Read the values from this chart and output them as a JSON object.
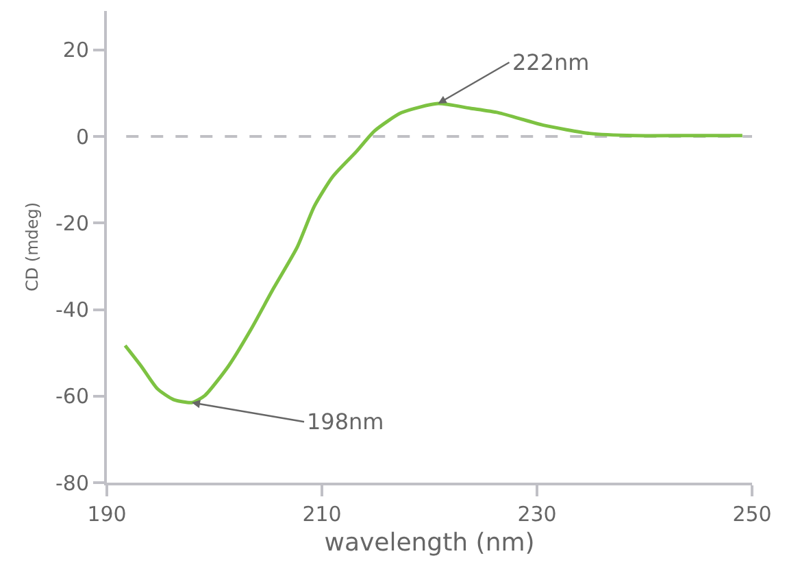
{
  "chart_data": {
    "type": "line",
    "xlabel": "wavelength (nm)",
    "ylabel": "CD (mdeg)",
    "xlim": [
      190,
      250
    ],
    "xticks": [
      190,
      210,
      230,
      250
    ],
    "ylim": [
      -80,
      29
    ],
    "yticks": [
      -80,
      -60,
      -40,
      -20,
      0,
      20
    ],
    "marker": "none",
    "line_style": "solid",
    "series": [
      {
        "color": "#7dc242",
        "x": [
          191.7,
          193.2,
          194.7,
          196.2,
          197.9,
          199.1,
          201.3,
          203.4,
          205.5,
          207.7,
          209.3,
          211.0,
          213.2,
          214.9,
          217.4,
          220.8,
          223.8,
          226.4,
          230.6,
          234.9,
          239.1,
          244,
          249.1
        ],
        "values": [
          -48.3,
          -53.1,
          -58.3,
          -60.8,
          -61.5,
          -59.9,
          -53.1,
          -44.6,
          -35.1,
          -25.6,
          -16.1,
          -9.3,
          -3.5,
          1.3,
          5.5,
          7.6,
          6.5,
          5.5,
          2.6,
          0.7,
          0.2,
          0.2,
          0.2
        ]
      }
    ],
    "ref_lines": [
      {
        "axis": "y",
        "value": 0,
        "color": "#c0c0c4",
        "line_style": "dashed"
      }
    ],
    "annotations": [
      {
        "text": "198nm",
        "x": 197.9,
        "y": -61.5
      },
      {
        "text": "222nm",
        "x": 220.8,
        "y": 7.6
      }
    ]
  }
}
